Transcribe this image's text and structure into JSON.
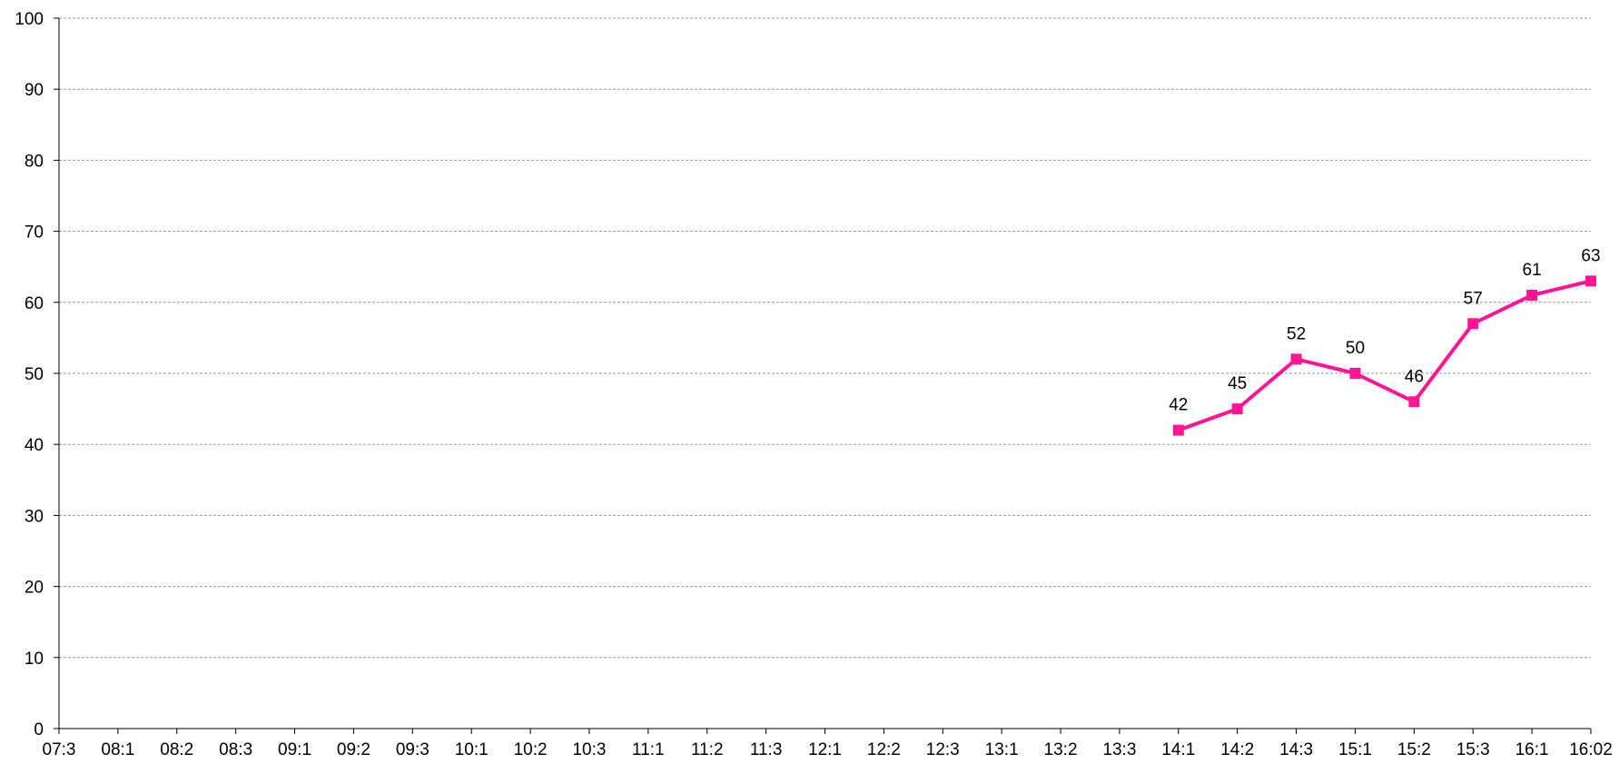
{
  "chart_data": {
    "type": "line",
    "title": "",
    "xlabel": "",
    "ylabel": "",
    "categories": [
      "07:3",
      "08:1",
      "08:2",
      "08:3",
      "09:1",
      "09:2",
      "09:3",
      "10:1",
      "10:2",
      "10:3",
      "11:1",
      "11:2",
      "11:3",
      "12:1",
      "12:2",
      "12:3",
      "13:1",
      "13:2",
      "13:3",
      "14:1",
      "14:2",
      "14:3",
      "15:1",
      "15:2",
      "15:3",
      "16:1",
      "16:02"
    ],
    "ylim": [
      0,
      100
    ],
    "yticks": [
      "0",
      "10",
      "20",
      "30",
      "40",
      "50",
      "60",
      "70",
      "80",
      "90",
      "100"
    ],
    "grid": true,
    "legend": "none",
    "series": [
      {
        "color": "#ff1493",
        "marker": "square",
        "values": [
          null,
          null,
          null,
          null,
          null,
          null,
          null,
          null,
          null,
          null,
          null,
          null,
          null,
          null,
          null,
          null,
          null,
          null,
          null,
          42,
          45,
          52,
          50,
          46,
          57,
          61,
          63
        ],
        "data_labels": [
          null,
          null,
          null,
          null,
          null,
          null,
          null,
          null,
          null,
          null,
          null,
          null,
          null,
          null,
          null,
          null,
          null,
          null,
          null,
          "42",
          "45",
          "52",
          "50",
          "46",
          "57",
          "61",
          "63"
        ]
      }
    ]
  }
}
